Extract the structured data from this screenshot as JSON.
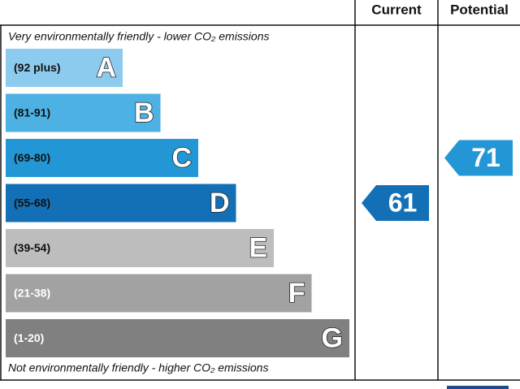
{
  "header": {
    "current": "Current",
    "potential": "Potential"
  },
  "top_note": "Very environmentally friendly - lower CO₂ emissions",
  "bottom_note": "Not environmentally friendly - higher CO₂ emissions",
  "bands": [
    {
      "range": "(92 plus)",
      "letter": "A",
      "color": "#8dcbee"
    },
    {
      "range": "(81-91)",
      "letter": "B",
      "color": "#4db1e4"
    },
    {
      "range": "(69-80)",
      "letter": "C",
      "color": "#2397d5"
    },
    {
      "range": "(55-68)",
      "letter": "D",
      "color": "#1470b6"
    },
    {
      "range": "(39-54)",
      "letter": "E",
      "color": "#bdbdbd"
    },
    {
      "range": "(21-38)",
      "letter": "F",
      "color": "#a2a2a2"
    },
    {
      "range": "(1-20)",
      "letter": "G",
      "color": "#808080"
    }
  ],
  "current": 61,
  "potential": 71
}
